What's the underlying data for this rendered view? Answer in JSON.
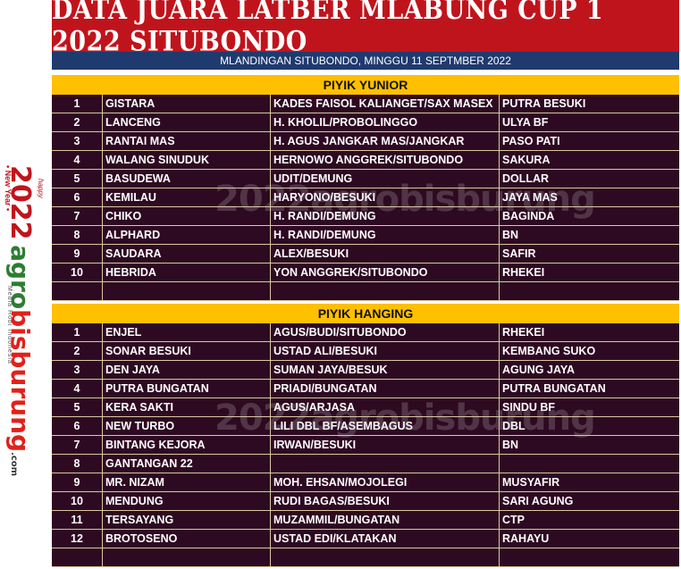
{
  "title": "DATA JUARA LATBER MLABUNG CUP 1 2022 SITUBONDO",
  "subtitle": "MLANDINGAN SITUBONDO, MINGGU 11 SEPTMBER 2022",
  "logo": {
    "year": "2022",
    "brand_a": "agro",
    "brand_b": "bisburung",
    "tld": ".com",
    "new_year": "• New Year •",
    "tagline": "Media Hobi Indonesia",
    "happy": "happy"
  },
  "colors": {
    "title_bg": "#c0141c",
    "subtitle_bg": "#1f3a6e",
    "section_bg": "#ffc000",
    "table_bg": "#2e0a22"
  },
  "sections": [
    {
      "name": "PIYIK YUNIOR",
      "rows": [
        {
          "no": "1",
          "bird": "GISTARA",
          "owner": "KADES FAISOL KALIANGET/SAX MASEX",
          "team": "PUTRA BESUKI"
        },
        {
          "no": "2",
          "bird": "LANCENG",
          "owner": "H. KHOLIL/PROBOLINGGO",
          "team": "ULYA BF"
        },
        {
          "no": "3",
          "bird": "RANTAI MAS",
          "owner": "H. AGUS JANGKAR MAS/JANGKAR",
          "team": "PASO PATI"
        },
        {
          "no": "4",
          "bird": "WALANG SINUDUK",
          "owner": "HERNOWO ANGGREK/SITUBONDO",
          "team": "SAKURA"
        },
        {
          "no": "5",
          "bird": "BASUDEWA",
          "owner": "UDIT/DEMUNG",
          "team": "DOLLAR"
        },
        {
          "no": "6",
          "bird": "KEMILAU",
          "owner": "HARYONO/BESUKI",
          "team": "JAYA MAS"
        },
        {
          "no": "7",
          "bird": "CHIKO",
          "owner": "H. RANDI/DEMUNG",
          "team": "BAGINDA"
        },
        {
          "no": "8",
          "bird": "ALPHARD",
          "owner": "H. RANDI/DEMUNG",
          "team": "BN"
        },
        {
          "no": "9",
          "bird": "SAUDARA",
          "owner": "ALEX/BESUKI",
          "team": "SAFIR"
        },
        {
          "no": "10",
          "bird": "HEBRIDA",
          "owner": "YON ANGGREK/SITUBONDO",
          "team": "RHEKEI"
        },
        {
          "no": "",
          "bird": "",
          "owner": "",
          "team": ""
        }
      ]
    },
    {
      "name": "PIYIK HANGING",
      "rows": [
        {
          "no": "1",
          "bird": "ENJEL",
          "owner": "AGUS/BUDI/SITUBONDO",
          "team": "RHEKEI"
        },
        {
          "no": "2",
          "bird": "SONAR BESUKI",
          "owner": "USTAD ALI/BESUKI",
          "team": "KEMBANG SUKO"
        },
        {
          "no": "3",
          "bird": "DEN JAYA",
          "owner": "SUMAN JAYA/BESUK",
          "team": "AGUNG JAYA"
        },
        {
          "no": "4",
          "bird": "PUTRA BUNGATAN",
          "owner": "PRIADI/BUNGATAN",
          "team": "PUTRA BUNGATAN"
        },
        {
          "no": "5",
          "bird": "KERA SAKTI",
          "owner": "AGUS/ARJASA",
          "team": "SINDU BF"
        },
        {
          "no": "6",
          "bird": "NEW TURBO",
          "owner": "LILI DBL BF/ASEMBAGUS",
          "team": "DBL"
        },
        {
          "no": "7",
          "bird": "BINTANG KEJORA",
          "owner": "IRWAN/BESUKI",
          "team": "BN"
        },
        {
          "no": "8",
          "bird": "GANTANGAN 22",
          "owner": "",
          "team": ""
        },
        {
          "no": "9",
          "bird": "MR. NIZAM",
          "owner": "MOH. EHSAN/MOJOLEGI",
          "team": "MUSYAFIR"
        },
        {
          "no": "10",
          "bird": "MENDUNG",
          "owner": "RUDI BAGAS/BESUKI",
          "team": "SARI AGUNG"
        },
        {
          "no": "11",
          "bird": "TERSAYANG",
          "owner": "MUZAMMIL/BUNGATAN",
          "team": "CTP"
        },
        {
          "no": "12",
          "bird": "BROTOSENO",
          "owner": "USTAD  EDI/KLATAKAN",
          "team": "RAHAYU"
        },
        {
          "no": "",
          "bird": "",
          "owner": "",
          "team": ""
        }
      ]
    }
  ]
}
